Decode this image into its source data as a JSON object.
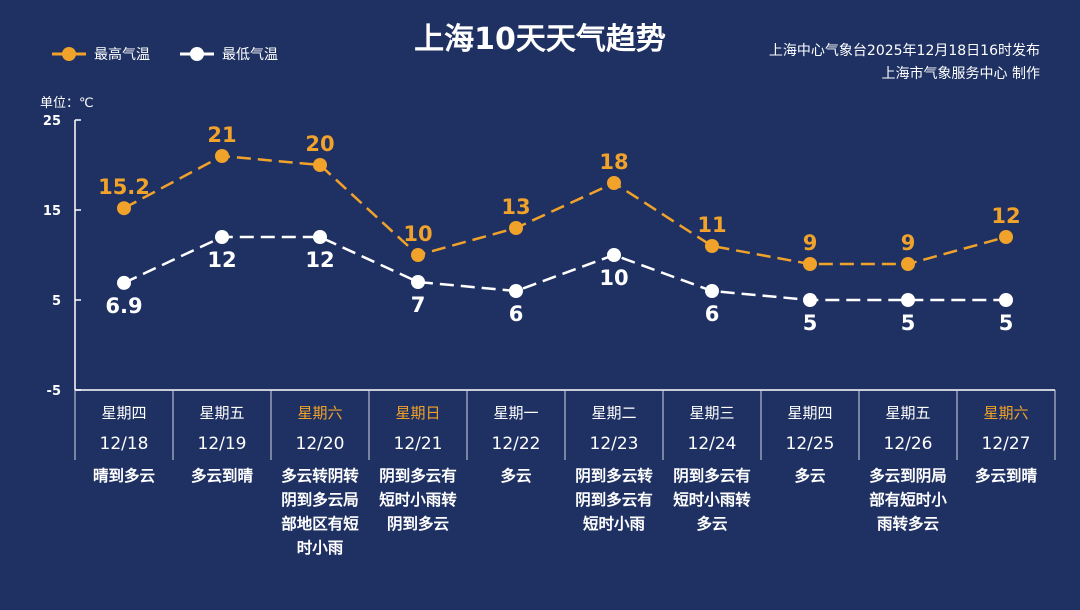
{
  "title": "上海10天天气趋势",
  "publisher": {
    "line1": "上海中心气象台2025年12月18日16时发布",
    "line2": "上海市气象服务中心 制作"
  },
  "unit": "单位：℃",
  "colors": {
    "background": "#1f3163",
    "high": "#f0a22a",
    "low": "#ffffff",
    "weekend": "#f0a22a"
  },
  "chart_data": {
    "type": "line",
    "ylim": [
      -5,
      25
    ],
    "yticks": [
      25,
      15,
      5,
      -5
    ],
    "legend_position": "top-left",
    "categories": [
      "12/18",
      "12/19",
      "12/20",
      "12/21",
      "12/22",
      "12/23",
      "12/24",
      "12/25",
      "12/26",
      "12/27"
    ],
    "weekdays": [
      "星期四",
      "星期五",
      "星期六",
      "星期日",
      "星期一",
      "星期二",
      "星期三",
      "星期四",
      "星期五",
      "星期六"
    ],
    "weekend": [
      false,
      false,
      true,
      true,
      false,
      false,
      false,
      false,
      false,
      true
    ],
    "weather": [
      "晴到多云",
      "多云到晴",
      "多云转阴转阴到多云局部地区有短时小雨",
      "阴到多云有短时小雨转阴到多云",
      "多云",
      "阴到多云转阴到多云有短时小雨",
      "阴到多云有短时小雨转多云",
      "多云",
      "多云到阴局部有短时小雨转多云",
      "多云到晴"
    ],
    "series": [
      {
        "name": "最高气温",
        "values": [
          15.2,
          21,
          20,
          10,
          13,
          18,
          11,
          9,
          9,
          12
        ],
        "labels": [
          "15.2",
          "21",
          "20",
          "10",
          "13",
          "18",
          "11",
          "9",
          "9",
          "12"
        ]
      },
      {
        "name": "最低气温",
        "values": [
          6.9,
          12,
          12,
          7,
          6,
          10,
          6,
          5,
          5,
          5
        ],
        "labels": [
          "6.9",
          "12",
          "12",
          "7",
          "6",
          "10",
          "6",
          "5",
          "5",
          "5"
        ]
      }
    ]
  }
}
